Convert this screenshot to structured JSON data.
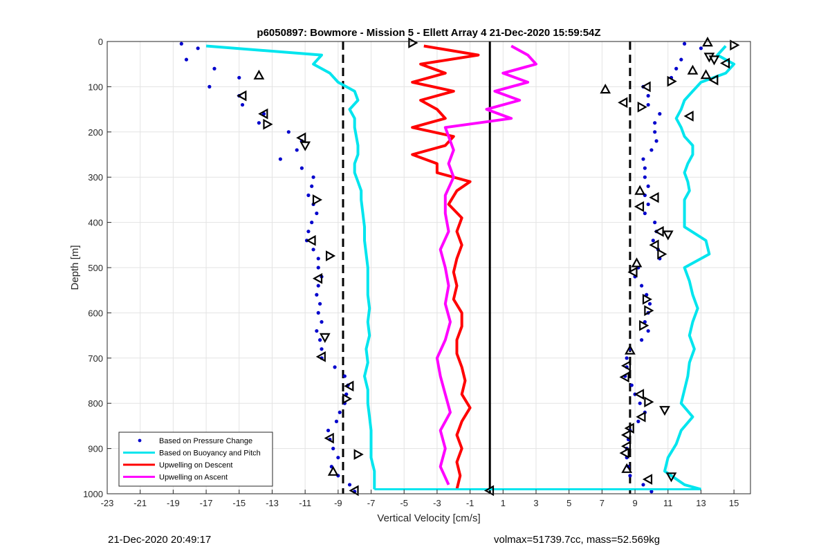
{
  "chart_data": {
    "type": "scatter",
    "title": "p6050897: Bowmore - Mission 5 - Ellett Array 4 21-Dec-2020 15:59:54Z",
    "xlabel": "Vertical Velocity [cm/s]",
    "ylabel": "Depth [m]",
    "xlim": [
      -23,
      16
    ],
    "ylim": [
      0,
      1000
    ],
    "y_reversed": true,
    "grid": true,
    "legend_position": "bottom-left",
    "x_ticks": [
      -23,
      -21,
      -19,
      -17,
      -15,
      -13,
      -11,
      -9,
      -7,
      -5,
      -3,
      -1,
      1,
      3,
      5,
      7,
      9,
      11,
      13,
      15
    ],
    "y_ticks": [
      0,
      100,
      200,
      300,
      400,
      500,
      600,
      700,
      800,
      900,
      1000
    ],
    "reference_lines": [
      {
        "x": -8.7,
        "style": "dashed",
        "color": "#000000"
      },
      {
        "x": 0.2,
        "style": "solid",
        "color": "#000000"
      },
      {
        "x": 8.7,
        "style": "dashed",
        "color": "#000000"
      }
    ],
    "series": [
      {
        "name": "Based on Pressure Change",
        "style": "dots",
        "color": "#0000cc",
        "depth": [
          5,
          15,
          40,
          60,
          80,
          100,
          120,
          140,
          160,
          180,
          200,
          220,
          240,
          260,
          280,
          300,
          320,
          340,
          360,
          380,
          400,
          420,
          440,
          460,
          480,
          500,
          520,
          540,
          560,
          580,
          600,
          620,
          640,
          660,
          680,
          700,
          720,
          740,
          760,
          780,
          800,
          820,
          840,
          860,
          880,
          900,
          920,
          940,
          960,
          980,
          995
        ],
        "descent_x": [
          -18.5,
          -17.5,
          -18.2,
          -16.5,
          -15.0,
          -16.8,
          -15.0,
          -14.8,
          -13.5,
          -13.8,
          -12.0,
          -11.2,
          -11.5,
          -12.5,
          -11.2,
          -10.5,
          -10.6,
          -10.8,
          -10.5,
          -10.3,
          -10.6,
          -10.8,
          -10.9,
          -10.5,
          -10.2,
          -10.2,
          -10.0,
          -10.2,
          -10.3,
          -10.1,
          -10.2,
          -10.0,
          -10.3,
          -10.1,
          -10.0,
          -10.0,
          -9.2,
          -8.6,
          -8.4,
          -8.5,
          -8.6,
          -8.9,
          -9.1,
          -9.6,
          -9.5,
          -9.3,
          -9.0,
          -9.4,
          -9.0,
          -8.3,
          -8.0
        ],
        "ascent_x": [
          12.0,
          13.0,
          11.8,
          11.5,
          11.2,
          9.5,
          9.8,
          9.8,
          10.5,
          10.2,
          10.2,
          10.3,
          10.0,
          9.5,
          9.6,
          9.6,
          9.8,
          9.6,
          9.8,
          9.6,
          10.2,
          10.3,
          10.1,
          10.4,
          10.5,
          9.2,
          9.0,
          9.4,
          9.7,
          9.9,
          9.8,
          9.6,
          9.8,
          9.4,
          8.7,
          8.5,
          8.5,
          8.4,
          8.8,
          9.0,
          9.3,
          9.6,
          9.2,
          8.7,
          8.6,
          8.5,
          8.5,
          8.6,
          8.7,
          9.5,
          10.0
        ]
      },
      {
        "name": "Based on Buoyancy and Pitch",
        "style": "line",
        "color": "#00e5ee",
        "depth": [
          10,
          30,
          50,
          70,
          90,
          110,
          130,
          150,
          170,
          190,
          210,
          230,
          250,
          270,
          290,
          310,
          330,
          350,
          380,
          410,
          440,
          470,
          500,
          530,
          560,
          590,
          620,
          650,
          680,
          710,
          740,
          770,
          800,
          830,
          860,
          890,
          920,
          950,
          980,
          990
        ],
        "descent_x": [
          -17.0,
          -10.0,
          -10.5,
          -9.5,
          -9.0,
          -8.0,
          -7.8,
          -8.3,
          -8.0,
          -8.0,
          -7.9,
          -7.8,
          -7.8,
          -8.0,
          -8.0,
          -7.8,
          -7.6,
          -7.6,
          -7.5,
          -7.4,
          -7.4,
          -7.3,
          -7.2,
          -7.2,
          -7.2,
          -7.1,
          -7.2,
          -7.1,
          -7.3,
          -7.2,
          -7.4,
          -7.2,
          -7.2,
          -7.1,
          -7.0,
          -7.0,
          -7.0,
          -6.8,
          -6.8,
          -6.8
        ],
        "ascent_x": [
          14.5,
          14.0,
          15.0,
          14.5,
          13.0,
          12.5,
          12.0,
          11.8,
          11.5,
          11.8,
          12.0,
          12.5,
          12.5,
          12.2,
          12.0,
          12.2,
          12.3,
          12.0,
          12.0,
          12.0,
          13.3,
          13.5,
          12.0,
          12.3,
          12.5,
          12.8,
          12.5,
          12.3,
          12.6,
          12.3,
          12.2,
          12.0,
          11.8,
          12.5,
          11.8,
          11.5,
          11.0,
          10.8,
          12.0,
          13.0
        ]
      },
      {
        "name": "Upwelling on Descent",
        "style": "line",
        "color": "#ff0000",
        "depth": [
          10,
          30,
          50,
          70,
          90,
          110,
          130,
          150,
          170,
          190,
          210,
          230,
          250,
          270,
          290,
          310,
          330,
          360,
          390,
          420,
          450,
          480,
          510,
          540,
          570,
          600,
          630,
          660,
          690,
          720,
          750,
          780,
          810,
          840,
          870,
          900,
          930,
          960,
          990
        ],
        "x": [
          -3.8,
          -0.5,
          -4.0,
          -2.5,
          -4.5,
          -2.0,
          -4.0,
          -3.0,
          -2.5,
          -4.5,
          -2.0,
          -2.5,
          -4.5,
          -3.0,
          -3.0,
          -1.0,
          -1.8,
          -2.3,
          -1.5,
          -1.8,
          -1.5,
          -1.8,
          -2.0,
          -1.8,
          -2.0,
          -1.5,
          -1.5,
          -1.8,
          -1.8,
          -1.5,
          -1.3,
          -1.5,
          -1.0,
          -1.5,
          -1.8,
          -1.5,
          -1.8,
          -1.6,
          -1.8
        ]
      },
      {
        "name": "Upwelling on Ascent",
        "style": "line",
        "color": "#ff00ff",
        "depth": [
          10,
          30,
          50,
          70,
          90,
          110,
          130,
          150,
          170,
          190,
          210,
          240,
          270,
          300,
          340,
          380,
          420,
          460,
          500,
          540,
          580,
          620,
          660,
          700,
          740,
          780,
          820,
          860,
          900,
          940,
          980
        ],
        "x": [
          1.5,
          2.5,
          3.0,
          1.0,
          2.5,
          0.5,
          2.0,
          0.0,
          1.5,
          -2.5,
          -2.3,
          -2.0,
          -2.3,
          -2.0,
          -2.5,
          -2.5,
          -2.3,
          -2.8,
          -2.5,
          -2.3,
          -2.5,
          -2.2,
          -2.5,
          -3.0,
          -2.8,
          -2.5,
          -2.2,
          -2.8,
          -2.5,
          -2.8,
          -2.3
        ]
      }
    ],
    "triangle_markers": {
      "color": "#000000",
      "points": [
        {
          "x": -4.5,
          "depth": 3,
          "dir": "right"
        },
        {
          "x": -13.8,
          "depth": 75,
          "dir": "up"
        },
        {
          "x": -14.8,
          "depth": 120,
          "dir": "left"
        },
        {
          "x": -13.5,
          "depth": 160,
          "dir": "left"
        },
        {
          "x": -13.3,
          "depth": 183,
          "dir": "right"
        },
        {
          "x": -11.2,
          "depth": 213,
          "dir": "left"
        },
        {
          "x": -11.0,
          "depth": 230,
          "dir": "down"
        },
        {
          "x": -10.3,
          "depth": 350,
          "dir": "right"
        },
        {
          "x": -10.6,
          "depth": 440,
          "dir": "left"
        },
        {
          "x": -9.5,
          "depth": 474,
          "dir": "right"
        },
        {
          "x": -10.2,
          "depth": 524,
          "dir": "left"
        },
        {
          "x": -9.8,
          "depth": 654,
          "dir": "down"
        },
        {
          "x": -10.0,
          "depth": 697,
          "dir": "left"
        },
        {
          "x": -8.3,
          "depth": 762,
          "dir": "left"
        },
        {
          "x": -8.5,
          "depth": 790,
          "dir": "right"
        },
        {
          "x": -9.5,
          "depth": 877,
          "dir": "left"
        },
        {
          "x": -7.8,
          "depth": 913,
          "dir": "right"
        },
        {
          "x": -9.3,
          "depth": 951,
          "dir": "up"
        },
        {
          "x": -8.0,
          "depth": 993,
          "dir": "left"
        },
        {
          "x": 0.2,
          "depth": 993,
          "dir": "left"
        },
        {
          "x": 13.4,
          "depth": 2,
          "dir": "up"
        },
        {
          "x": 15.0,
          "depth": 8,
          "dir": "right"
        },
        {
          "x": 13.5,
          "depth": 34,
          "dir": "down"
        },
        {
          "x": 13.8,
          "depth": 40,
          "dir": "down"
        },
        {
          "x": 14.5,
          "depth": 48,
          "dir": "left"
        },
        {
          "x": 12.5,
          "depth": 64,
          "dir": "up"
        },
        {
          "x": 13.3,
          "depth": 74,
          "dir": "up"
        },
        {
          "x": 13.8,
          "depth": 85,
          "dir": "left"
        },
        {
          "x": 11.2,
          "depth": 88,
          "dir": "right"
        },
        {
          "x": 9.7,
          "depth": 100,
          "dir": "left"
        },
        {
          "x": 7.2,
          "depth": 106,
          "dir": "up"
        },
        {
          "x": 8.3,
          "depth": 135,
          "dir": "left"
        },
        {
          "x": 9.4,
          "depth": 145,
          "dir": "right"
        },
        {
          "x": 12.3,
          "depth": 165,
          "dir": "left"
        },
        {
          "x": 9.3,
          "depth": 330,
          "dir": "up"
        },
        {
          "x": 9.3,
          "depth": 365,
          "dir": "left"
        },
        {
          "x": 10.2,
          "depth": 345,
          "dir": "left"
        },
        {
          "x": 10.5,
          "depth": 420,
          "dir": "left"
        },
        {
          "x": 11.0,
          "depth": 427,
          "dir": "down"
        },
        {
          "x": 10.2,
          "depth": 450,
          "dir": "left"
        },
        {
          "x": 10.6,
          "depth": 470,
          "dir": "right"
        },
        {
          "x": 9.1,
          "depth": 490,
          "dir": "up"
        },
        {
          "x": 8.9,
          "depth": 510,
          "dir": "left"
        },
        {
          "x": 9.7,
          "depth": 570,
          "dir": "right"
        },
        {
          "x": 9.8,
          "depth": 595,
          "dir": "right"
        },
        {
          "x": 9.5,
          "depth": 628,
          "dir": "right"
        },
        {
          "x": 8.7,
          "depth": 683,
          "dir": "up"
        },
        {
          "x": 8.5,
          "depth": 717,
          "dir": "left"
        },
        {
          "x": 8.4,
          "depth": 742,
          "dir": "left"
        },
        {
          "x": 9.3,
          "depth": 780,
          "dir": "left"
        },
        {
          "x": 9.8,
          "depth": 797,
          "dir": "right"
        },
        {
          "x": 10.8,
          "depth": 815,
          "dir": "down"
        },
        {
          "x": 9.4,
          "depth": 830,
          "dir": "left"
        },
        {
          "x": 8.7,
          "depth": 855,
          "dir": "left"
        },
        {
          "x": 8.5,
          "depth": 870,
          "dir": "left"
        },
        {
          "x": 8.5,
          "depth": 895,
          "dir": "left"
        },
        {
          "x": 8.4,
          "depth": 910,
          "dir": "left"
        },
        {
          "x": 8.5,
          "depth": 945,
          "dir": "up"
        },
        {
          "x": 9.8,
          "depth": 968,
          "dir": "left"
        },
        {
          "x": 11.2,
          "depth": 962,
          "dir": "down"
        }
      ]
    }
  },
  "footer": {
    "left": "21-Dec-2020 20:49:17",
    "right": "volmax=51739.7cc, mass=52.569kg"
  }
}
